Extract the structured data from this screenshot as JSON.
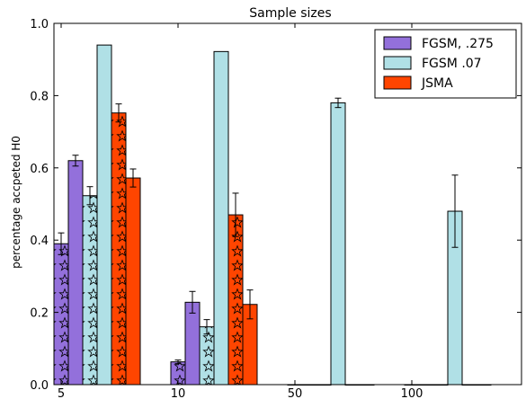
{
  "chart_data": {
    "type": "bar",
    "title": "Sample sizes",
    "xlabel": "",
    "ylabel": "percentage accpeted H0",
    "ylim": [
      0,
      1.0
    ],
    "yticks": [
      "0.0",
      "0.2",
      "0.4",
      "0.6",
      "0.8",
      "1.0"
    ],
    "categories": [
      "5",
      "10",
      "50",
      "100"
    ],
    "series": [
      {
        "name": "FGSM, .275",
        "color": "#9370db",
        "bars": [
          {
            "category": "5",
            "hatched": true,
            "value": 0.39,
            "err": 0.03
          },
          {
            "category": "5",
            "hatched": false,
            "value": 0.62,
            "err": 0.015
          },
          {
            "category": "10",
            "hatched": true,
            "value": 0.063,
            "err": 0.005
          },
          {
            "category": "10",
            "hatched": false,
            "value": 0.228,
            "err": 0.03
          },
          {
            "category": "50",
            "hatched": true,
            "value": 0.0,
            "err": 0
          },
          {
            "category": "50",
            "hatched": false,
            "value": 0.0,
            "err": 0
          },
          {
            "category": "100",
            "hatched": true,
            "value": 0.0,
            "err": 0
          },
          {
            "category": "100",
            "hatched": false,
            "value": 0.0,
            "err": 0
          }
        ]
      },
      {
        "name": "FGSM .07",
        "color": "#b0e0e6",
        "bars": [
          {
            "category": "5",
            "hatched": true,
            "value": 0.523,
            "err": 0.025
          },
          {
            "category": "5",
            "hatched": false,
            "value": 0.94,
            "err": 0
          },
          {
            "category": "10",
            "hatched": true,
            "value": 0.16,
            "err": 0.02
          },
          {
            "category": "10",
            "hatched": false,
            "value": 0.922,
            "err": 0
          },
          {
            "category": "50",
            "hatched": true,
            "value": 0.0,
            "err": 0
          },
          {
            "category": "50",
            "hatched": false,
            "value": 0.78,
            "err": 0.013
          },
          {
            "category": "100",
            "hatched": true,
            "value": 0.0,
            "err": 0
          },
          {
            "category": "100",
            "hatched": false,
            "value": 0.48,
            "err": 0.1
          }
        ]
      },
      {
        "name": "JSMA",
        "color": "#ff4500",
        "bars": [
          {
            "category": "5",
            "hatched": true,
            "value": 0.752,
            "err": 0.025
          },
          {
            "category": "5",
            "hatched": false,
            "value": 0.572,
            "err": 0.025
          },
          {
            "category": "10",
            "hatched": true,
            "value": 0.47,
            "err": 0.06
          },
          {
            "category": "10",
            "hatched": false,
            "value": 0.222,
            "err": 0.04
          },
          {
            "category": "50",
            "hatched": true,
            "value": 0.0,
            "err": 0
          },
          {
            "category": "50",
            "hatched": false,
            "value": 0.0,
            "err": 0
          },
          {
            "category": "100",
            "hatched": true,
            "value": 0.0,
            "err": 0
          },
          {
            "category": "100",
            "hatched": false,
            "value": 0.0,
            "err": 0
          }
        ]
      }
    ],
    "legend": {
      "position": "top-right"
    },
    "grid": false
  }
}
